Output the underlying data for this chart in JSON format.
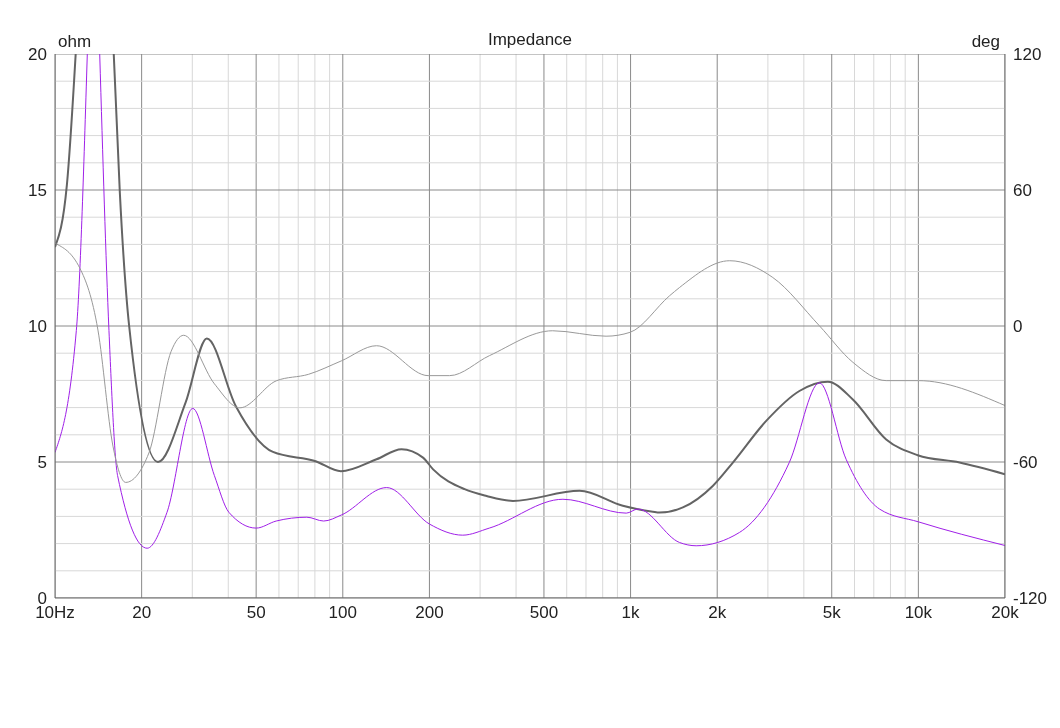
{
  "chart_data": {
    "type": "line",
    "title": "Impedance",
    "ylabel": "ohm",
    "y2label": "deg",
    "xlim": [
      10,
      20000
    ],
    "log": "x",
    "xticks": [
      {
        "value": 10,
        "label": "10Hz"
      },
      {
        "value": 20,
        "label": "20"
      },
      {
        "value": 30,
        "label": null
      },
      {
        "value": 40,
        "label": null
      },
      {
        "value": 50,
        "label": "50"
      },
      {
        "value": 60,
        "label": null
      },
      {
        "value": 70,
        "label": null
      },
      {
        "value": 80,
        "label": null
      },
      {
        "value": 90,
        "label": null
      },
      {
        "value": 100,
        "label": "100"
      },
      {
        "value": 200,
        "label": "200"
      },
      {
        "value": 300,
        "label": null
      },
      {
        "value": 400,
        "label": null
      },
      {
        "value": 500,
        "label": "500"
      },
      {
        "value": 600,
        "label": null
      },
      {
        "value": 700,
        "label": null
      },
      {
        "value": 800,
        "label": null
      },
      {
        "value": 900,
        "label": null
      },
      {
        "value": 1000,
        "label": "1k"
      },
      {
        "value": 2000,
        "label": "2k"
      },
      {
        "value": 3000,
        "label": null
      },
      {
        "value": 4000,
        "label": null
      },
      {
        "value": 5000,
        "label": "5k"
      },
      {
        "value": 6000,
        "label": null
      },
      {
        "value": 7000,
        "label": null
      },
      {
        "value": 8000,
        "label": null
      },
      {
        "value": 9000,
        "label": null
      },
      {
        "value": 10000,
        "label": "10k"
      },
      {
        "value": 20000,
        "label": "20k"
      }
    ],
    "ylim": [
      0,
      20
    ],
    "yticks": [
      0,
      {
        "value": 1,
        "label": null
      },
      {
        "value": 2,
        "label": null
      },
      {
        "value": 3,
        "label": null
      },
      {
        "value": 4,
        "label": null
      },
      5,
      {
        "value": 6,
        "label": null
      },
      {
        "value": 7,
        "label": null
      },
      {
        "value": 8,
        "label": null
      },
      {
        "value": 9,
        "label": null
      },
      10,
      {
        "value": 11,
        "label": null
      },
      {
        "value": 12,
        "label": null
      },
      {
        "value": 13,
        "label": null
      },
      {
        "value": 14,
        "label": null
      },
      15,
      {
        "value": 16,
        "label": null
      },
      {
        "value": 17,
        "label": null
      },
      {
        "value": 18,
        "label": null
      },
      {
        "value": 19,
        "label": null
      },
      20
    ],
    "y2lim": [
      -120,
      120
    ],
    "y2ticks": [
      -120,
      -60,
      0,
      60,
      120
    ],
    "grid": true,
    "marker": "none",
    "line_style": "solid",
    "series": [
      {
        "color": "#646464",
        "x": [
          10,
          11,
          11.8,
          14,
          16,
          16.8,
          18.1,
          22.8,
          28.4,
          33.7,
          42.5,
          57.2,
          80.5,
          98.5,
          131,
          160,
          190,
          206,
          265,
          316,
          390,
          665,
          940,
          1195,
          1260,
          1520,
          1930,
          2267,
          2960,
          3860,
          4845,
          5920,
          7730,
          9950,
          13900,
          20000
        ],
        "values": [
          12.9,
          15.2,
          20,
          null,
          20,
          14.9,
          10,
          5.0,
          7.17,
          9.54,
          7.05,
          5.37,
          5.03,
          4.66,
          5.1,
          5.47,
          5.16,
          4.73,
          4.0,
          3.75,
          3.57,
          3.94,
          3.39,
          3.17,
          3.14,
          3.33,
          4.12,
          4.98,
          6.51,
          7.61,
          7.95,
          7.3,
          5.83,
          5.25,
          4.98,
          4.55
        ]
      },
      {
        "color": "#a020e8",
        "x": [
          10,
          11.86,
          12.95,
          13.6,
          14.3,
          15.4,
          16.5,
          20.9,
          24.5,
          30.1,
          35.8,
          40.2,
          50,
          58.7,
          75,
          85.8,
          98.8,
          142,
          200,
          261,
          323,
          582,
          966,
          1060,
          1480,
          1690,
          2390,
          3560,
          4530,
          5610,
          7330,
          10000,
          20000
        ],
        "values": [
          5.35,
          9.83,
          20,
          null,
          20,
          9.83,
          4.5,
          1.83,
          3.15,
          6.97,
          4.5,
          3.15,
          2.57,
          2.83,
          2.97,
          2.83,
          3.05,
          4.06,
          2.72,
          2.31,
          2.57,
          3.63,
          3.12,
          3.27,
          2.04,
          1.92,
          2.41,
          4.98,
          7.91,
          5.1,
          3.27,
          2.8,
          1.93
        ]
      },
      {
        "color": "#999999",
        "axis": "y2",
        "x": [
          10,
          12.2,
          14.1,
          15.9,
          17.6,
          21.2,
          25.3,
          28.0,
          35.8,
          43.9,
          58.7,
          76.1,
          98.8,
          131,
          198,
          235,
          323,
          536,
          822,
          995,
          1365,
          1480,
          2210,
          3120,
          4530,
          5920,
          7730,
          10000,
          20000
        ],
        "values": [
          36.5,
          25.5,
          -1.8,
          -53,
          -69,
          -56,
          -11.3,
          -4.1,
          -25.5,
          -36.1,
          -24.2,
          -21.3,
          -15.4,
          -8.7,
          -21.9,
          -21.9,
          -13.1,
          -2.1,
          -4.5,
          -2.8,
          13.3,
          17,
          28.8,
          21.4,
          0.1,
          -16,
          -24.1,
          -24.1,
          -35.1
        ]
      }
    ]
  }
}
